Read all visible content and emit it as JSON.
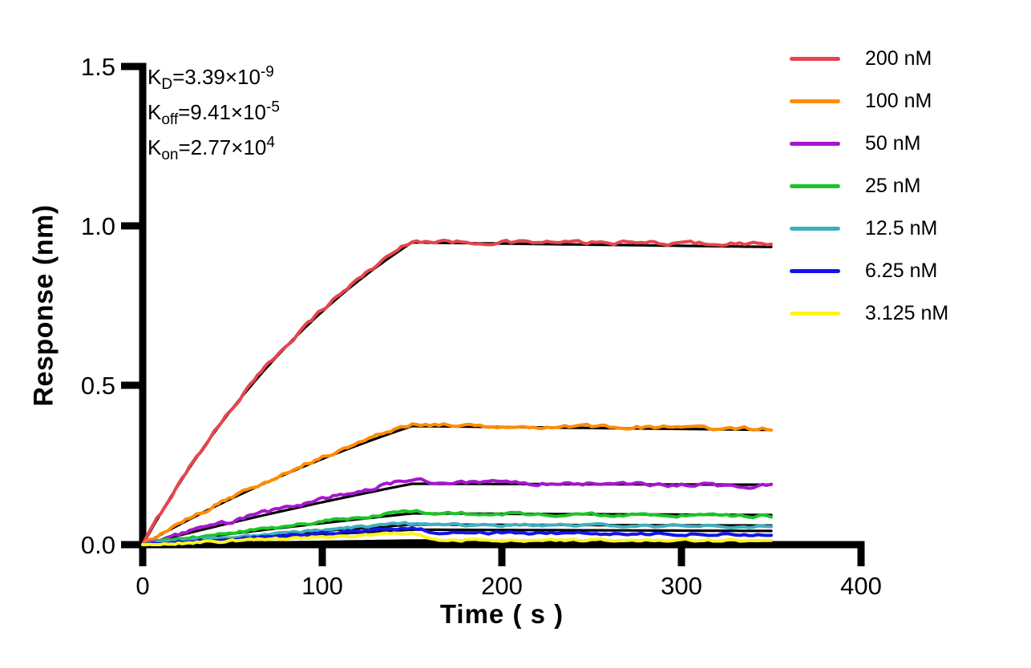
{
  "page": {
    "background": "#FFFFFF"
  },
  "annotations": [
    {
      "id": "kd",
      "base": "K",
      "sub": "D",
      "mid": "=3.39×10",
      "sup": "-9"
    },
    {
      "id": "koff",
      "base": "K",
      "sub": "off",
      "mid": "=9.41×10",
      "sup": "-5"
    },
    {
      "id": "kon",
      "base": "K",
      "sub": "on",
      "mid": "=2.77×10",
      "sup": "4"
    }
  ],
  "chart_data": {
    "type": "line",
    "title": "",
    "xlabel": "Time ( s )",
    "ylabel": "Response (nm)",
    "xlim": [
      0,
      400
    ],
    "ylim": [
      0,
      1.5
    ],
    "xticks": [
      "0",
      "100",
      "200",
      "300",
      "400"
    ],
    "xtick_values": [
      0,
      100,
      200,
      300,
      400
    ],
    "yticks": [
      "0.0",
      "0.5",
      "1.0",
      "1.5"
    ],
    "ytick_values": [
      0,
      0.5,
      1.0,
      1.5
    ],
    "grid": false,
    "legend_position": "top-right",
    "axis_color": "#000000",
    "fit_line_color": "#000000",
    "association_end_s": 150,
    "curve_end_s": 350,
    "kinetics": {
      "KD": "3.39×10^-9",
      "Koff": "9.41×10^-5",
      "Kon": "2.77×10^4"
    },
    "series": [
      {
        "name": "200 nM",
        "color": "#E5454D",
        "k_obs": 0.0068,
        "response_at_150s": 0.955,
        "dissoc_start": 0.95,
        "response_at_350s": 0.944,
        "fit_at_150s": 0.948,
        "fit_at_350s": 0.934,
        "noise": 0.005
      },
      {
        "name": "100 nM",
        "color": "#FF8C00",
        "k_obs": 0.0035,
        "response_at_150s": 0.38,
        "dissoc_start": 0.376,
        "response_at_350s": 0.363,
        "fit_at_150s": 0.372,
        "fit_at_350s": 0.36,
        "noise": 0.005
      },
      {
        "name": "50 nM",
        "color": "#A715CE",
        "k_obs": 0.0018,
        "response_at_150s": 0.205,
        "dissoc_start": 0.196,
        "response_at_350s": 0.184,
        "fit_at_150s": 0.191,
        "fit_at_350s": 0.188,
        "noise": 0.005
      },
      {
        "name": "25 nM",
        "color": "#1CC427",
        "k_obs": 0.0012,
        "response_at_150s": 0.105,
        "dissoc_start": 0.099,
        "response_at_350s": 0.089,
        "fit_at_150s": 0.098,
        "fit_at_350s": 0.093,
        "noise": 0.004
      },
      {
        "name": "12.5 nM",
        "color": "#3FAEC0",
        "k_obs": 0.0009,
        "response_at_150s": 0.067,
        "dissoc_start": 0.062,
        "response_at_350s": 0.057,
        "fit_at_150s": 0.063,
        "fit_at_350s": 0.06,
        "noise": 0.0035
      },
      {
        "name": "6.25 nM",
        "color": "#1414E6",
        "k_obs": 0.0008,
        "response_at_150s": 0.052,
        "dissoc_start": 0.038,
        "response_at_350s": 0.032,
        "fit_at_150s": 0.047,
        "fit_at_350s": 0.043,
        "noise": 0.0035
      },
      {
        "name": "3.125 nM",
        "color": "#FFF31E",
        "k_obs": 0.0006,
        "response_at_150s": 0.036,
        "dissoc_start": 0.016,
        "response_at_350s": 0.012,
        "fit_at_150s": 0.013,
        "fit_at_350s": 0.01,
        "noise": 0.003
      }
    ]
  }
}
